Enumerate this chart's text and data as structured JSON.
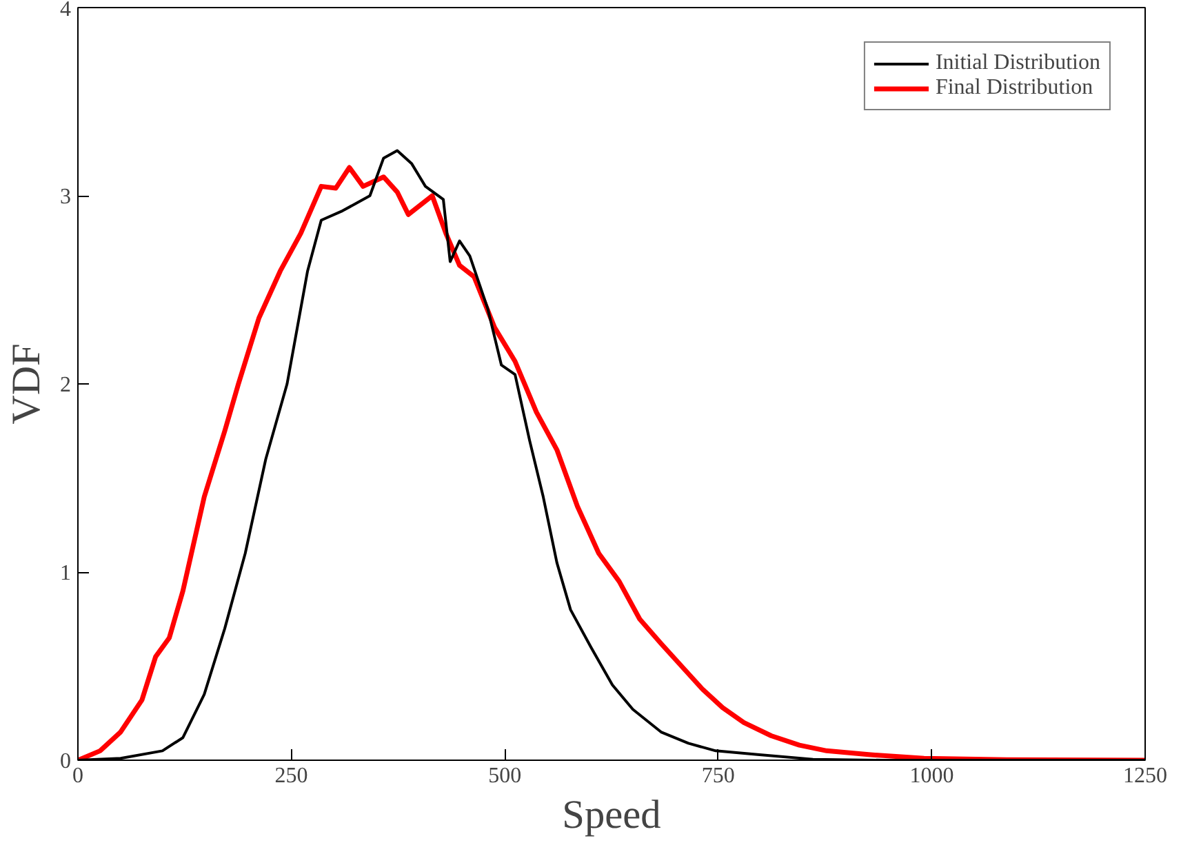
{
  "chart_data": {
    "type": "line",
    "xlabel": "Speed",
    "ylabel": "VDF",
    "xlim": [
      0,
      1250
    ],
    "ylim": [
      0,
      4
    ],
    "xticks": [
      0,
      250,
      500,
      750,
      1000,
      1250
    ],
    "yticks": [
      0,
      1,
      2,
      3,
      4
    ],
    "grid": false,
    "legend": "top right",
    "marker": "none",
    "line_style": "solid",
    "series": [
      {
        "name": "Initial Distribution",
        "color": "#000000",
        "x": [
          0,
          50,
          99,
          123,
          148,
          172,
          196,
          220,
          245,
          269,
          285,
          310,
          342,
          358,
          374,
          391,
          407,
          428,
          436,
          447,
          459,
          480,
          496,
          512,
          529,
          545,
          561,
          577,
          601,
          626,
          650,
          683,
          715,
          747,
          796,
          861,
          942,
          1250
        ],
        "values": [
          0,
          0.01,
          0.05,
          0.12,
          0.35,
          0.7,
          1.1,
          1.6,
          2.0,
          2.6,
          2.87,
          2.92,
          3.0,
          3.2,
          3.24,
          3.17,
          3.05,
          2.98,
          2.65,
          2.76,
          2.68,
          2.4,
          2.1,
          2.05,
          1.7,
          1.4,
          1.05,
          0.8,
          0.6,
          0.4,
          0.27,
          0.15,
          0.09,
          0.05,
          0.03,
          0.005,
          0,
          0
        ]
      },
      {
        "name": "Final Distribution",
        "color": "#ff0000",
        "x": [
          0,
          26,
          50,
          75,
          91,
          107,
          123,
          148,
          172,
          188,
          212,
          237,
          261,
          285,
          302,
          318,
          334,
          358,
          374,
          387,
          415,
          431,
          447,
          464,
          488,
          512,
          537,
          561,
          585,
          610,
          634,
          658,
          683,
          707,
          731,
          755,
          780,
          812,
          845,
          877,
          926,
          991,
          1088,
          1250
        ],
        "values": [
          0,
          0.05,
          0.15,
          0.32,
          0.55,
          0.65,
          0.9,
          1.4,
          1.75,
          2.0,
          2.35,
          2.6,
          2.8,
          3.05,
          3.04,
          3.15,
          3.05,
          3.1,
          3.02,
          2.9,
          3.0,
          2.8,
          2.63,
          2.57,
          2.3,
          2.12,
          1.85,
          1.65,
          1.35,
          1.1,
          0.95,
          0.75,
          0.62,
          0.5,
          0.38,
          0.28,
          0.2,
          0.13,
          0.08,
          0.05,
          0.03,
          0.01,
          0.003,
          0
        ]
      }
    ]
  }
}
